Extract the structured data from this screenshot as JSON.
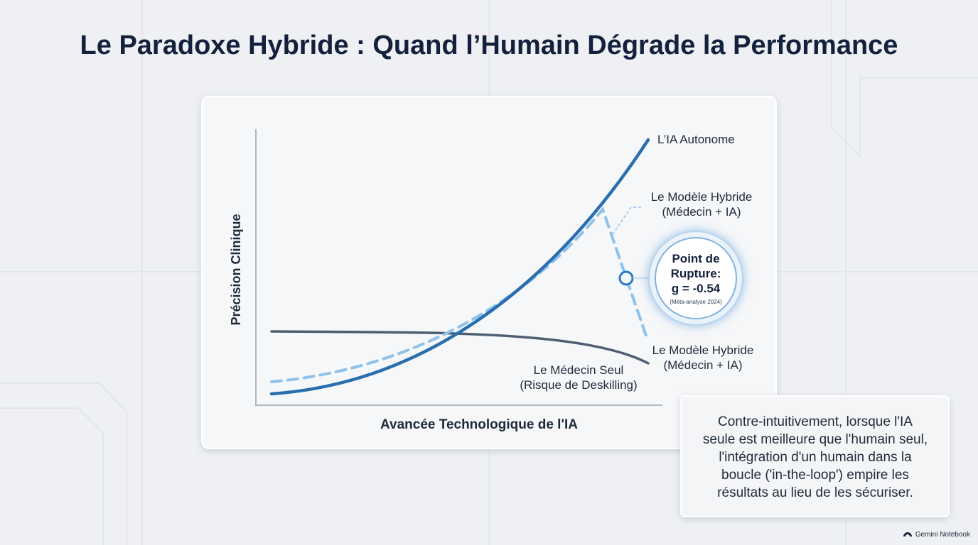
{
  "header": {
    "title": "Le Paradoxe Hybride : Quand l’Humain Dégrade la Performance"
  },
  "diagram": {
    "y_axis_label": "Précision Clinique",
    "x_axis_label": "Avancée Technologique de l'IA",
    "curves": [
      {
        "label": [
          "L’IA Autonome"
        ]
      },
      {
        "label": [
          "Le Modèle Hybride",
          "(Médecin + IA)"
        ]
      },
      {
        "label": [
          "Le Modèle Hybride",
          "(Médecin + IA)"
        ]
      },
      {
        "label": [
          "Le Médecin Seul",
          "(Risque de Deskilling)"
        ]
      }
    ],
    "callout": {
      "lines": [
        "Point de",
        "Rupture:",
        "g = -0.54"
      ],
      "source": "(Méta-analyse 2024)"
    }
  },
  "note": {
    "lines": [
      "Contre-intuitivement, lorsque l'IA",
      "seule est meilleure que l'humain seul,",
      "l'intégration d'un humain dans la",
      "boucle ('in-the-loop') empire les",
      "résultats au lieu de les sécuriser."
    ]
  },
  "footer": {
    "brand": "Gemini Notebook"
  }
}
